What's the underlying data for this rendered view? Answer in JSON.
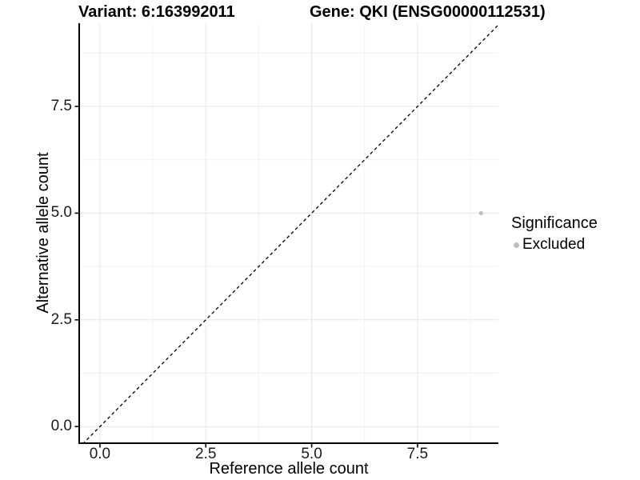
{
  "figure": {
    "title_left": "Variant: 6:163992011",
    "title_right": "Gene: QKI (ENSG00000112531)"
  },
  "colors": {
    "background": "#ffffff",
    "grid_major": "#e6e6e6",
    "grid_minor": "#f2f2f2",
    "axis_line": "#000000",
    "reference_line": "#000000",
    "point": "#bdbdbd",
    "text": "#000000"
  },
  "chart_data": {
    "type": "scatter",
    "title": "Variant: 6:163992011 | Gene: QKI (ENSG00000112531)",
    "xlabel": "Reference allele count",
    "ylabel": "Alternative allele count",
    "xlim": [
      -0.49,
      9.41
    ],
    "ylim": [
      -0.39,
      9.45
    ],
    "x_ticks": [
      0,
      2.5,
      5,
      7.5
    ],
    "x_tick_labels": [
      "0.0",
      "2.5",
      "5.0",
      "7.5"
    ],
    "x_minor_ticks": [
      1.25,
      3.75,
      6.25,
      8.75
    ],
    "y_ticks": [
      0,
      2.5,
      5,
      7.5
    ],
    "y_tick_labels": [
      "0.0",
      "2.5",
      "5.0",
      "7.5"
    ],
    "y_minor_ticks": [
      1.25,
      3.75,
      6.25,
      8.75
    ],
    "grid": "major+minor",
    "reference_line": {
      "type": "identity",
      "equation": "y = x",
      "style": "dashed",
      "color": "#000000"
    },
    "series": [
      {
        "name": "Excluded",
        "color": "#bdbdbd",
        "point_radius": 2.6,
        "points": [
          {
            "x": 9,
            "y": 5
          }
        ]
      }
    ],
    "legend": {
      "title": "Significance",
      "position": "right",
      "entries": [
        {
          "label": "Excluded",
          "color": "#bdbdbd"
        }
      ]
    }
  }
}
